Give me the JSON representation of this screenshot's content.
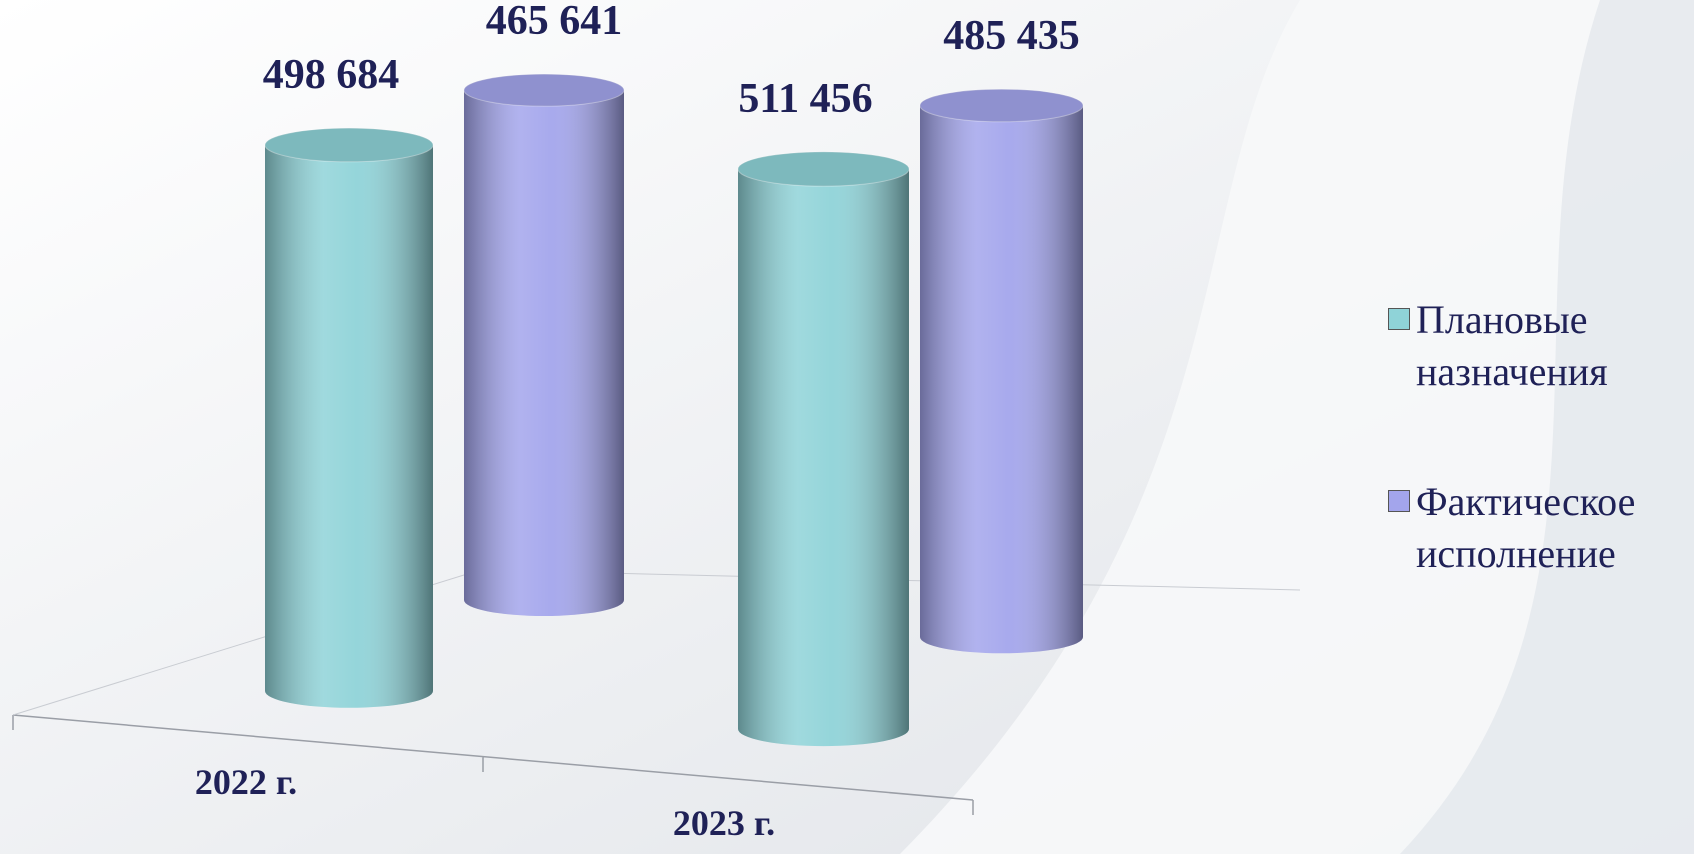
{
  "chart_data": {
    "type": "bar3d",
    "categories": [
      "2022 г.",
      "2023 г."
    ],
    "series": [
      {
        "name": "Плановые назначения",
        "color": "#8fd3d8",
        "values": [
          498684,
          511456
        ],
        "value_labels": [
          "498 684",
          "511 456"
        ]
      },
      {
        "name": "Фактическое исполнение",
        "color": "#a3a5ec",
        "values": [
          465641,
          485435
        ],
        "value_labels": [
          "465 641",
          "485 435"
        ]
      }
    ],
    "legend": "right"
  }
}
